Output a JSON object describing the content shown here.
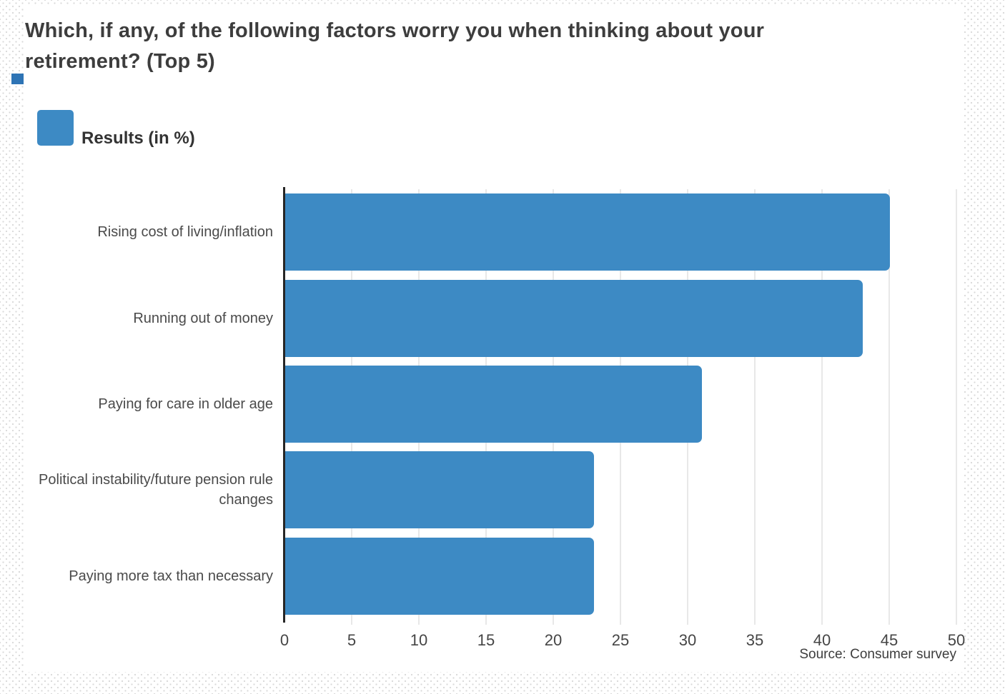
{
  "header": {
    "title": "Which, if any, of the following factors worry you when thinking about your retirement? (Top 5)"
  },
  "legend": {
    "label": "Results (in %)"
  },
  "source": "Source: Consumer survey",
  "colors": {
    "bar": "#3d8ac4",
    "accent_square": "#2e74b5",
    "axis": "#262626",
    "gridline": "#e8e8e8",
    "title_text": "#3d3d3d",
    "label_text": "#4a4a4a"
  },
  "chart_data": {
    "type": "bar",
    "orientation": "horizontal",
    "title": "Which, if any, of the following factors worry you when thinking about your retirement? (Top 5)",
    "categories": [
      "Rising cost of living/inflation",
      "Running out of money",
      "Paying for care in older age",
      "Political instability/future pension rule changes",
      "Paying more tax than necessary"
    ],
    "series": [
      {
        "name": "Results (in %)",
        "values": [
          45,
          43,
          31,
          23,
          23
        ]
      }
    ],
    "xlabel": "",
    "ylabel": "",
    "xlim": [
      0,
      50
    ],
    "xticks": [
      0,
      5,
      10,
      15,
      20,
      25,
      30,
      35,
      40,
      45,
      50
    ],
    "grid": true,
    "legend_position": "top-left",
    "source": "Source: Consumer survey"
  }
}
